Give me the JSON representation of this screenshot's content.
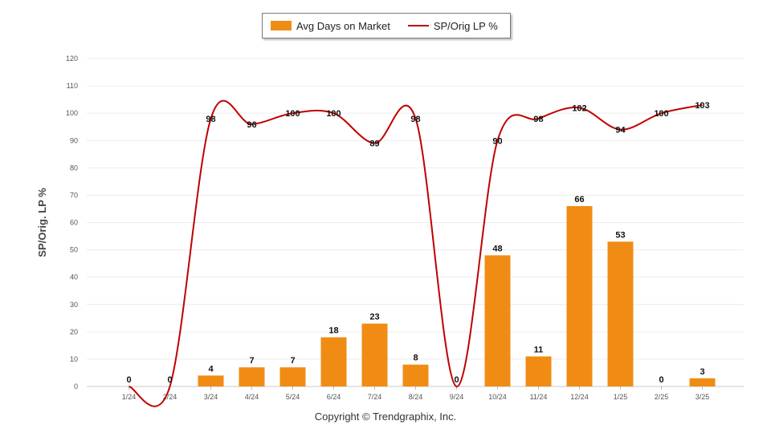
{
  "chart_data": {
    "type": "bar",
    "categories": [
      "1/24",
      "2/24",
      "3/24",
      "4/24",
      "5/24",
      "6/24",
      "7/24",
      "8/24",
      "9/24",
      "10/24",
      "11/24",
      "12/24",
      "1/25",
      "2/25",
      "3/25"
    ],
    "series": [
      {
        "name": "Avg Days on Market",
        "type": "bar",
        "values": [
          0,
          0,
          4,
          7,
          7,
          18,
          23,
          8,
          0,
          48,
          11,
          66,
          53,
          0,
          3
        ],
        "color": "#f08c14"
      },
      {
        "name": "SP/Orig LP %",
        "type": "line",
        "values": [
          0,
          0,
          98,
          96,
          100,
          100,
          89,
          98,
          0,
          90,
          98,
          102,
          94,
          100,
          103
        ],
        "color": "#c00000"
      }
    ],
    "ylabel": "SP/Orig. LP %",
    "ylim": [
      0,
      120
    ],
    "yticks": [
      0,
      10,
      20,
      30,
      40,
      50,
      60,
      70,
      80,
      90,
      100,
      110,
      120
    ],
    "grid": true,
    "legend_position": "top-center"
  },
  "legend": {
    "bar_label": "Avg Days on Market",
    "line_label": "SP/Orig LP %"
  },
  "copyright": "Copyright © Trendgraphix, Inc."
}
